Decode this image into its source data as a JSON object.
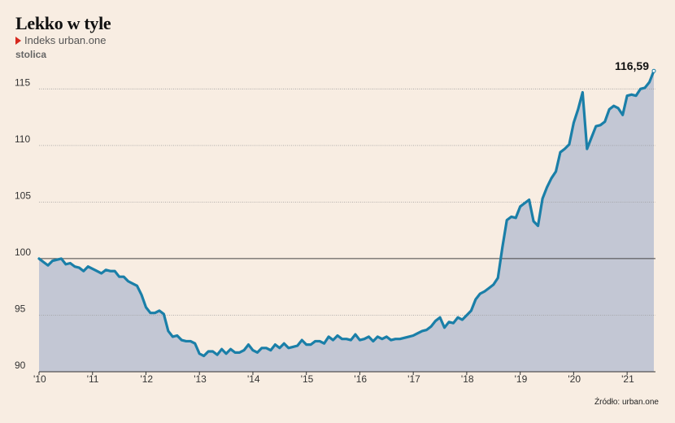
{
  "chart_data": {
    "type": "area",
    "title": "Lekko w tyle",
    "subtitle": "stolica",
    "series": [
      {
        "name": "Indeks urban.one",
        "x": [
          2010.0,
          2010.083,
          2010.167,
          2010.25,
          2010.333,
          2010.417,
          2010.5,
          2010.583,
          2010.667,
          2010.75,
          2010.833,
          2010.917,
          2011.0,
          2011.083,
          2011.167,
          2011.25,
          2011.333,
          2011.417,
          2011.5,
          2011.583,
          2011.667,
          2011.75,
          2011.833,
          2011.917,
          2012.0,
          2012.083,
          2012.167,
          2012.25,
          2012.333,
          2012.417,
          2012.5,
          2012.583,
          2012.667,
          2012.75,
          2012.833,
          2012.917,
          2013.0,
          2013.083,
          2013.167,
          2013.25,
          2013.333,
          2013.417,
          2013.5,
          2013.583,
          2013.667,
          2013.75,
          2013.833,
          2013.917,
          2014.0,
          2014.083,
          2014.167,
          2014.25,
          2014.333,
          2014.417,
          2014.5,
          2014.583,
          2014.667,
          2014.75,
          2014.833,
          2014.917,
          2015.0,
          2015.083,
          2015.167,
          2015.25,
          2015.333,
          2015.417,
          2015.5,
          2015.583,
          2015.667,
          2015.75,
          2015.833,
          2015.917,
          2016.0,
          2016.083,
          2016.167,
          2016.25,
          2016.333,
          2016.417,
          2016.5,
          2016.583,
          2016.667,
          2016.75,
          2016.833,
          2016.917,
          2017.0,
          2017.083,
          2017.167,
          2017.25,
          2017.333,
          2017.417,
          2017.5,
          2017.583,
          2017.667,
          2017.75,
          2017.833,
          2017.917,
          2018.0,
          2018.083,
          2018.167,
          2018.25,
          2018.333,
          2018.417,
          2018.5,
          2018.583,
          2018.667,
          2018.75,
          2018.833,
          2018.917,
          2019.0,
          2019.083,
          2019.167,
          2019.25,
          2019.333,
          2019.417,
          2019.5,
          2019.583,
          2019.667,
          2019.75,
          2019.833,
          2019.917,
          2020.0,
          2020.083,
          2020.167,
          2020.25,
          2020.333,
          2020.417,
          2020.5,
          2020.583,
          2020.667,
          2020.75,
          2020.833,
          2020.917,
          2021.0,
          2021.083,
          2021.167,
          2021.25,
          2021.333,
          2021.417,
          2021.5
        ],
        "values": [
          100.0,
          99.7,
          99.4,
          99.8,
          99.9,
          100.0,
          99.5,
          99.6,
          99.3,
          99.2,
          98.9,
          99.3,
          99.1,
          98.9,
          98.7,
          99.0,
          98.9,
          98.9,
          98.4,
          98.4,
          98.0,
          97.8,
          97.6,
          96.8,
          95.7,
          95.2,
          95.2,
          95.4,
          95.1,
          93.6,
          93.1,
          93.2,
          92.8,
          92.7,
          92.7,
          92.5,
          91.6,
          91.4,
          91.8,
          91.8,
          91.5,
          92.0,
          91.6,
          92.0,
          91.7,
          91.7,
          91.9,
          92.4,
          91.9,
          91.7,
          92.1,
          92.1,
          91.9,
          92.4,
          92.1,
          92.5,
          92.1,
          92.2,
          92.3,
          92.8,
          92.4,
          92.4,
          92.7,
          92.7,
          92.5,
          93.1,
          92.8,
          93.2,
          92.9,
          92.9,
          92.8,
          93.3,
          92.8,
          92.9,
          93.1,
          92.7,
          93.1,
          92.9,
          93.1,
          92.8,
          92.9,
          92.9,
          93.0,
          93.1,
          93.2,
          93.4,
          93.6,
          93.7,
          94.0,
          94.5,
          94.8,
          93.9,
          94.4,
          94.3,
          94.8,
          94.6,
          95.0,
          95.4,
          96.4,
          96.9,
          97.1,
          97.4,
          97.7,
          98.3,
          101.0,
          103.4,
          103.7,
          103.6,
          104.6,
          104.9,
          105.2,
          103.3,
          102.9,
          105.3,
          106.3,
          107.1,
          107.7,
          109.4,
          109.7,
          110.1,
          112.0,
          113.2,
          114.7,
          109.7,
          110.7,
          111.7,
          111.8,
          112.1,
          113.2,
          113.5,
          113.3,
          112.7,
          114.4,
          114.5,
          114.4,
          115.0,
          115.1,
          115.6,
          116.59
        ]
      }
    ],
    "x_ticks": [
      "'10",
      "'11",
      "'12",
      "'13",
      "'14",
      "'15",
      "'16",
      "'17",
      "'18",
      "'19",
      "'20",
      "'21"
    ],
    "y_ticks": [
      "90",
      "95",
      "100",
      "105",
      "110",
      "115"
    ],
    "ylim": [
      90,
      117
    ],
    "baseline": 100,
    "end_label": "116,59",
    "grid": true,
    "colors": {
      "line": "#1a7fa8",
      "fill": "#c3c7d4",
      "baseline": "#444444",
      "grid": "#9a9a9a",
      "marker": "#d6281e"
    }
  },
  "source": "Źródło: urban.one"
}
